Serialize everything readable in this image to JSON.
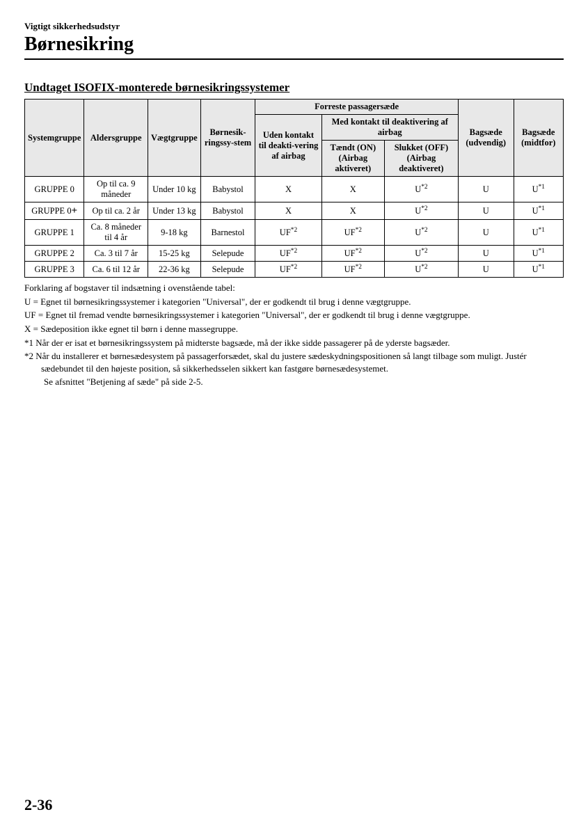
{
  "header": {
    "breadcrumb": "Vigtigt sikkerhedsudstyr",
    "title": "Børnesikring"
  },
  "section": {
    "heading": "Undtaget ISOFIX-monterede børnesikringssystemer"
  },
  "table": {
    "headers": {
      "col1": "Systemgruppe",
      "col2": "Aldersgruppe",
      "col3": "Vægtgruppe",
      "col4": "Børnesik-ringssy-stem",
      "front_seat": "Forreste passagersæde",
      "no_contact": "Uden kontakt til deakti-vering af airbag",
      "with_contact": "Med kontakt til deaktivering af airbag",
      "on": "Tændt (ON) (Airbag aktiveret)",
      "off": "Slukket (OFF) (Airbag deaktiveret)",
      "rear_outer": "Bagsæde (udvendig)",
      "rear_center": "Bagsæde (midtfor)"
    },
    "rows": [
      {
        "group": "GRUPPE 0",
        "group_suffix": "",
        "age": "Op til ca. 9 måneder",
        "weight": "Under 10 kg",
        "system": "Babystol",
        "no_contact": "X",
        "on": "X",
        "off": "U",
        "off_sup": "*2",
        "rear_outer": "U",
        "rear_center": "U",
        "rear_center_sup": "*1"
      },
      {
        "group": "GRUPPE 0",
        "group_suffix": "+",
        "age": "Op til ca. 2 år",
        "weight": "Under 13 kg",
        "system": "Babystol",
        "no_contact": "X",
        "on": "X",
        "off": "U",
        "off_sup": "*2",
        "rear_outer": "U",
        "rear_center": "U",
        "rear_center_sup": "*1"
      },
      {
        "group": "GRUPPE 1",
        "group_suffix": "",
        "age": "Ca. 8 måneder til 4 år",
        "weight": "9-18 kg",
        "system": "Barnestol",
        "no_contact": "UF",
        "no_contact_sup": "*2",
        "on": "UF",
        "on_sup": "*2",
        "off": "U",
        "off_sup": "*2",
        "rear_outer": "U",
        "rear_center": "U",
        "rear_center_sup": "*1"
      },
      {
        "group": "GRUPPE 2",
        "group_suffix": "",
        "age": "Ca. 3 til 7 år",
        "weight": "15-25 kg",
        "system": "Selepude",
        "no_contact": "UF",
        "no_contact_sup": "*2",
        "on": "UF",
        "on_sup": "*2",
        "off": "U",
        "off_sup": "*2",
        "rear_outer": "U",
        "rear_center": "U",
        "rear_center_sup": "*1"
      },
      {
        "group": "GRUPPE 3",
        "group_suffix": "",
        "age": "Ca. 6 til 12 år",
        "weight": "22-36 kg",
        "system": "Selepude",
        "no_contact": "UF",
        "no_contact_sup": "*2",
        "on": "UF",
        "on_sup": "*2",
        "off": "U",
        "off_sup": "*2",
        "rear_outer": "U",
        "rear_center": "U",
        "rear_center_sup": "*1"
      }
    ]
  },
  "notes": {
    "intro": "Forklaring af bogstaver til indsætning i ovenstående tabel:",
    "u": "U = Egnet til børnesikringssystemer i kategorien \"Universal\", der er godkendt til brug i denne vægtgruppe.",
    "uf": "UF = Egnet til fremad vendte børnesikringssystemer i kategorien \"Universal\", der er godkendt til brug i denne vægtgruppe.",
    "x": "X = Sædeposition ikke egnet til børn i denne massegruppe.",
    "n1": "*1  Når der er isat et børnesikringssystem på midterste bagsæde, må der ikke sidde passagerer på de yderste bagsæder.",
    "n2": "*2  Når du installerer et børnesædesystem på passagerforsædet, skal du justere sædeskydningspositionen så langt tilbage som muligt. Justér sædebundet til den højeste position, så sikkerhedsselen sikkert kan fastgøre børnesædesystemet.",
    "n2b": "Se afsnittet \"Betjening af sæde\" på side 2-5."
  },
  "page_number": "2-36"
}
